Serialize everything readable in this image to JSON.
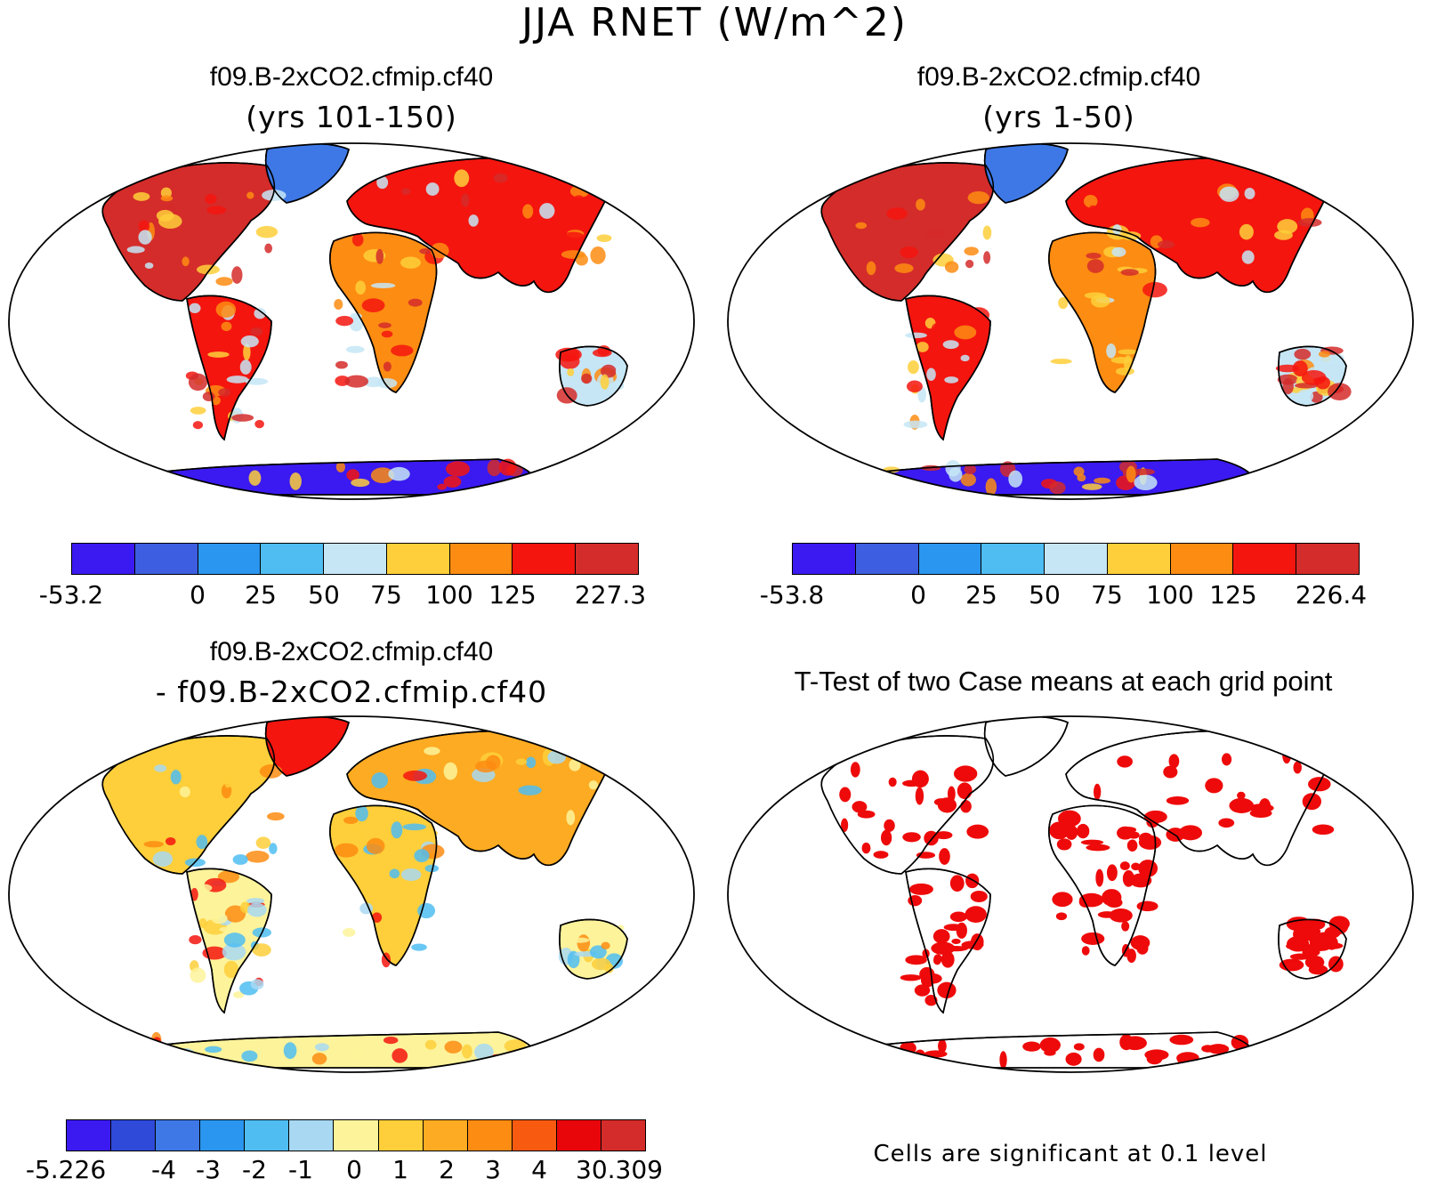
{
  "figure_title": "JJA RNET (W/m^2)",
  "panels": [
    {
      "id": "top-left",
      "title": "f09.B-2xCO2.cfmip.cf40",
      "subtitle": "(yrs 101-150)",
      "colorbar": {
        "colors": [
          "#3a1af0",
          "#3d5ee0",
          "#2a96ef",
          "#4fbdf2",
          "#c6e6f6",
          "#fecf3a",
          "#fd8c12",
          "#f4150f",
          "#d42c2a"
        ],
        "ticks": [
          "-53.2",
          "0",
          "25",
          "50",
          "75",
          "100",
          "125",
          "227.3"
        ]
      }
    },
    {
      "id": "top-right",
      "title": "f09.B-2xCO2.cfmip.cf40",
      "subtitle": "(yrs 1-50)",
      "colorbar": {
        "colors": [
          "#3a1af0",
          "#3d5ee0",
          "#2a96ef",
          "#4fbdf2",
          "#c6e6f6",
          "#fecf3a",
          "#fd8c12",
          "#f4150f",
          "#d42c2a"
        ],
        "ticks": [
          "-53.8",
          "0",
          "25",
          "50",
          "75",
          "100",
          "125",
          "226.4"
        ]
      }
    },
    {
      "id": "bottom-left",
      "title": "f09.B-2xCO2.cfmip.cf40",
      "subtitle": "- f09.B-2xCO2.cfmip.cf40",
      "colorbar": {
        "colors": [
          "#3a1af0",
          "#2f49d8",
          "#3d78e6",
          "#2a96ef",
          "#4fbdf2",
          "#a8d8f2",
          "#fdf39a",
          "#fecf3a",
          "#fdab22",
          "#fd8c12",
          "#f85a10",
          "#e8060b",
          "#d42c2a"
        ],
        "ticks": [
          "-5.226",
          "-4",
          "-3",
          "-2",
          "-1",
          "0",
          "1",
          "2",
          "3",
          "4",
          "30.309"
        ]
      }
    },
    {
      "id": "bottom-right",
      "title": "T-Test of two Case means at each grid point",
      "note": "Cells are significant at 0.1 level",
      "significance_color": "#ee0a0a"
    }
  ]
}
